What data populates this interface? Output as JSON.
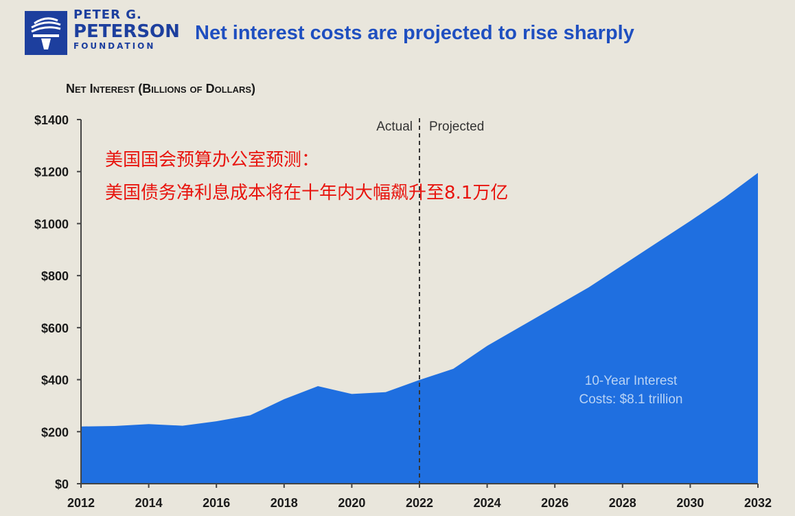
{
  "logo": {
    "line1": "PETER G.",
    "line2": "PETERSON",
    "line3": "FOUNDATION",
    "icon": "torch-icon",
    "color": "#1d3f9e"
  },
  "headline": "Net interest costs are projected to rise sharply",
  "overlay_text": {
    "line1": "美国国会预算办公室预测：",
    "line2": "美国债务净利息成本将在十年内大幅飙升至8.1万亿",
    "color": "#e8140e"
  },
  "chart_data": {
    "type": "area",
    "title": "Net Interest (Billions of Dollars)",
    "x": [
      2012,
      2013,
      2014,
      2015,
      2016,
      2017,
      2018,
      2019,
      2020,
      2021,
      2022,
      2023,
      2024,
      2025,
      2026,
      2027,
      2028,
      2029,
      2030,
      2031,
      2032
    ],
    "series": [
      {
        "values": [
          220,
          222,
          229,
          223,
          240,
          263,
          325,
          375,
          345,
          352,
          399,
          442,
          530,
          605,
          680,
          755,
          840,
          925,
          1010,
          1098,
          1195
        ],
        "color": "#1f6fe0"
      }
    ],
    "xlim": [
      2012,
      2032
    ],
    "ylim": [
      0,
      1400
    ],
    "y_ticks": [
      "$0",
      "$200",
      "$400",
      "$600",
      "$800",
      "$1000",
      "$1200",
      "$1400"
    ],
    "y_tick_values": [
      0,
      200,
      400,
      600,
      800,
      1000,
      1200,
      1400
    ],
    "x_ticks": [
      "2012",
      "2014",
      "2016",
      "2018",
      "2020",
      "2022",
      "2024",
      "2026",
      "2028",
      "2030",
      "2032"
    ],
    "x_tick_values": [
      2012,
      2014,
      2016,
      2018,
      2020,
      2022,
      2024,
      2026,
      2028,
      2030,
      2032
    ],
    "divider": {
      "x": 2022,
      "left_label": "Actual",
      "right_label": "Projected"
    },
    "annotation": {
      "line1": "10-Year Interest",
      "line2": "Costs: $8.1 trillion",
      "color": "#b9d3f5"
    },
    "grid": false
  }
}
